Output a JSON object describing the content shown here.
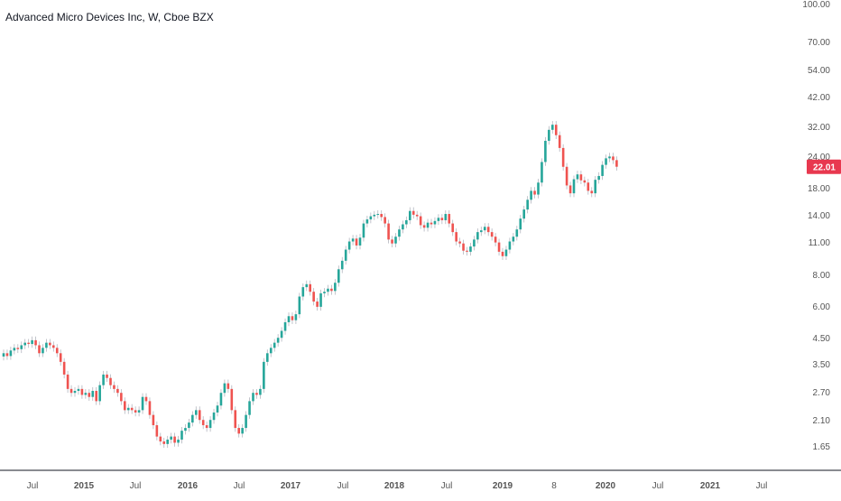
{
  "title": "Advanced Micro Devices Inc, W, Cboe BZX",
  "price_tag": "22.01",
  "colors": {
    "up": "#26a69a",
    "down": "#ef5350",
    "up_alt": "#4caf50",
    "price_tag_bg": "#e8384f",
    "text": "#131722",
    "axis_text": "#555555",
    "axis_line": "#131722",
    "wick": "#b2b5be"
  },
  "chart_data": {
    "type": "candlestick",
    "title": "Advanced Micro Devices Inc, W, Cboe BZX",
    "y_scale": "log",
    "ylim": [
      1.5,
      100
    ],
    "y_ticks": [
      "100.00",
      "70.00",
      "54.00",
      "42.00",
      "32.00",
      "24.00",
      "18.00",
      "14.00",
      "11.00",
      "8.00",
      "6.00",
      "4.50",
      "3.50",
      "2.70",
      "2.10",
      "1.65"
    ],
    "x_ticks": [
      "Jul",
      "2015",
      "Jul",
      "2016",
      "Jul",
      "2017",
      "Jul",
      "2018",
      "Jul",
      "2019",
      "8",
      "2020",
      "Jul",
      "2021",
      "Jul"
    ],
    "last_price": 22.01,
    "closes": [
      3.9,
      3.8,
      4.0,
      4.1,
      4.05,
      4.2,
      4.3,
      4.25,
      4.4,
      4.2,
      3.9,
      4.1,
      4.3,
      4.2,
      4.1,
      3.9,
      3.6,
      3.2,
      2.8,
      2.7,
      2.75,
      2.8,
      2.65,
      2.7,
      2.6,
      2.75,
      2.5,
      2.9,
      3.2,
      3.1,
      2.9,
      2.8,
      2.7,
      2.5,
      2.3,
      2.35,
      2.3,
      2.25,
      2.3,
      2.6,
      2.5,
      2.2,
      2.0,
      1.8,
      1.72,
      1.68,
      1.75,
      1.8,
      1.7,
      1.75,
      1.9,
      1.95,
      2.05,
      2.2,
      2.3,
      2.1,
      2.0,
      1.95,
      2.1,
      2.25,
      2.4,
      2.7,
      2.95,
      2.8,
      2.3,
      1.95,
      1.85,
      1.95,
      2.2,
      2.5,
      2.7,
      2.65,
      2.8,
      3.6,
      3.9,
      4.1,
      4.3,
      4.5,
      4.8,
      5.2,
      5.5,
      5.3,
      5.6,
      6.6,
      7.2,
      7.4,
      6.9,
      6.3,
      6.0,
      6.8,
      6.9,
      7.1,
      6.95,
      7.5,
      8.5,
      9.2,
      10.2,
      11.0,
      11.3,
      10.6,
      11.4,
      13.0,
      13.5,
      13.9,
      14.1,
      14.2,
      13.8,
      13.0,
      11.2,
      10.8,
      11.5,
      12.3,
      12.9,
      13.4,
      14.6,
      14.1,
      13.9,
      12.8,
      12.5,
      13.1,
      12.9,
      13.3,
      13.7,
      13.4,
      14.2,
      13.0,
      12.0,
      11.0,
      10.8,
      10.1,
      10.0,
      10.5,
      11.2,
      12.0,
      12.2,
      12.6,
      12.0,
      11.5,
      10.9,
      10.0,
      9.6,
      10.2,
      11.0,
      11.5,
      12.3,
      13.6,
      14.8,
      16.2,
      17.6,
      17.0,
      19.0,
      23.0,
      28.0,
      31.0,
      32.5,
      29.5,
      26.2,
      22.0,
      18.5,
      17.2,
      19.6,
      20.5,
      19.4,
      19.0,
      17.6,
      17.2,
      19.5,
      20.2,
      22.4,
      23.8,
      24.2,
      23.4,
      22.01
    ]
  }
}
